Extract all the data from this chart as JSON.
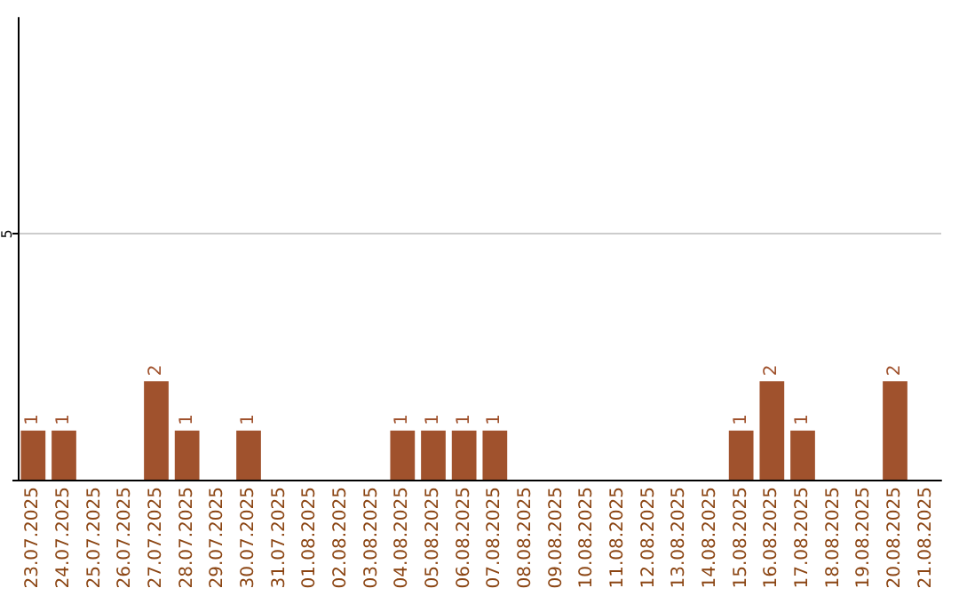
{
  "chart_data": {
    "type": "bar",
    "categories": [
      "23.07.2025",
      "24.07.2025",
      "25.07.2025",
      "26.07.2025",
      "27.07.2025",
      "28.07.2025",
      "29.07.2025",
      "30.07.2025",
      "31.07.2025",
      "01.08.2025",
      "02.08.2025",
      "03.08.2025",
      "04.08.2025",
      "05.08.2025",
      "06.08.2025",
      "07.08.2025",
      "08.08.2025",
      "09.08.2025",
      "10.08.2025",
      "11.08.2025",
      "12.08.2025",
      "13.08.2025",
      "14.08.2025",
      "15.08.2025",
      "16.08.2025",
      "17.08.2025",
      "18.08.2025",
      "19.08.2025",
      "20.08.2025",
      "21.08.2025"
    ],
    "values": [
      1,
      1,
      null,
      null,
      2,
      1,
      null,
      1,
      null,
      null,
      null,
      null,
      1,
      1,
      1,
      1,
      null,
      null,
      null,
      null,
      null,
      null,
      null,
      1,
      2,
      1,
      null,
      null,
      2,
      null
    ],
    "color": "#a0522d",
    "ylim": [
      0,
      9.4
    ],
    "yticks": [
      {
        "value": 0,
        "label": null
      },
      5
    ],
    "grid": "y",
    "data_labels": true
  }
}
